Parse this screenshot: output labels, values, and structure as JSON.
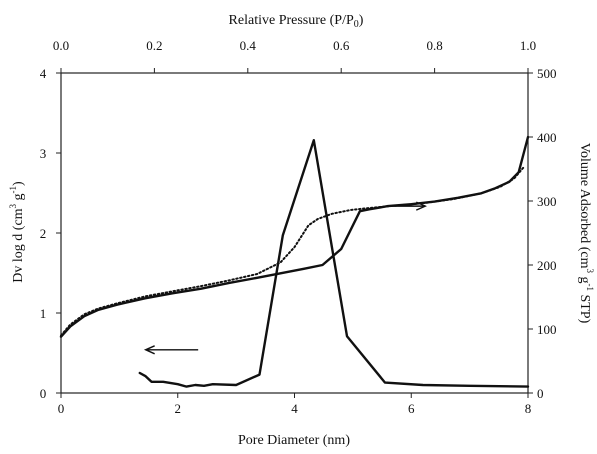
{
  "chart_data": {
    "type": "line",
    "xlabel_bottom": "Pore Diameter (nm)",
    "xlabel_top": "Relative Pressure (P/P",
    "xlabel_top_sub": "0",
    "xlabel_top_end": ")",
    "ylabel_left": {
      "main": "Dv log d (cm",
      "sup1": "3",
      "mid": " g",
      "sup2": "-1",
      "end": ")"
    },
    "ylabel_right": {
      "main": "Volume Adsorbed (cm",
      "sup1": "3",
      "mid": " g",
      "sup2": "-1",
      "end": " STP)"
    },
    "x_bottom": {
      "range": [
        0,
        8
      ],
      "ticks": [
        0,
        2,
        4,
        6,
        8
      ],
      "tick_labels": [
        "0",
        "2",
        "4",
        "6",
        "8"
      ]
    },
    "x_top": {
      "range": [
        0.0,
        1.0
      ],
      "ticks": [
        0.0,
        0.2,
        0.4,
        0.6,
        0.8,
        1.0
      ],
      "tick_labels": [
        "0.0",
        "0.2",
        "0.4",
        "0.6",
        "0.8",
        "1.0"
      ]
    },
    "y_left": {
      "range": [
        0,
        4
      ],
      "ticks": [
        0,
        1,
        2,
        3,
        4
      ],
      "tick_labels": [
        "0",
        "1",
        "2",
        "3",
        "4"
      ]
    },
    "y_right": {
      "range": [
        0,
        500
      ],
      "ticks": [
        0,
        100,
        200,
        300,
        400,
        500
      ],
      "tick_labels": [
        "0",
        "100",
        "200",
        "300",
        "400",
        "500"
      ]
    },
    "grid": false,
    "series": [
      {
        "style": "solid",
        "axes": "top-right",
        "x": [
          0.0,
          0.02,
          0.05,
          0.08,
          0.12,
          0.18,
          0.24,
          0.3,
          0.36,
          0.42,
          0.47,
          0.52,
          0.56,
          0.6,
          0.64,
          0.66,
          0.7,
          0.75,
          0.8,
          0.85,
          0.9,
          0.93,
          0.96,
          0.98,
          1.0
        ],
        "y": [
          88,
          104,
          120,
          130,
          138,
          148,
          156,
          163,
          172,
          180,
          187,
          194,
          200,
          225,
          284,
          287,
          292,
          295,
          299,
          305,
          312,
          320,
          330,
          345,
          400
        ]
      },
      {
        "style": "dotted",
        "axes": "top-right",
        "x": [
          0.0,
          0.02,
          0.05,
          0.08,
          0.12,
          0.18,
          0.24,
          0.3,
          0.36,
          0.42,
          0.47,
          0.5,
          0.53,
          0.55,
          0.58,
          0.62,
          0.66,
          0.72,
          0.78,
          0.84,
          0.9,
          0.94,
          0.97,
          0.99
        ],
        "y": [
          90,
          107,
          123,
          132,
          140,
          151,
          159,
          167,
          176,
          186,
          204,
          228,
          262,
          272,
          280,
          286,
          289,
          293,
          297,
          303,
          312,
          322,
          335,
          352
        ]
      },
      {
        "style": "solid",
        "axes": "bottom-left",
        "x": [
          1.35,
          1.45,
          1.55,
          1.75,
          2.0,
          2.15,
          2.3,
          2.45,
          2.6,
          3.0,
          3.4,
          3.8,
          4.33,
          4.9,
          5.55,
          6.2,
          7.0,
          8.0
        ],
        "y": [
          0.25,
          0.21,
          0.14,
          0.14,
          0.11,
          0.08,
          0.1,
          0.09,
          0.11,
          0.1,
          0.23,
          1.97,
          3.16,
          0.71,
          0.13,
          0.1,
          0.09,
          0.08
        ]
      }
    ],
    "annotations": [
      {
        "type": "arrow",
        "direction": "right",
        "points_to": "right axis",
        "x": [
          0.71,
          0.78
        ],
        "y": 292
      },
      {
        "type": "arrow",
        "direction": "left",
        "points_to": "left axis",
        "x": [
          2.35,
          1.45
        ],
        "y": 0.54
      }
    ]
  }
}
